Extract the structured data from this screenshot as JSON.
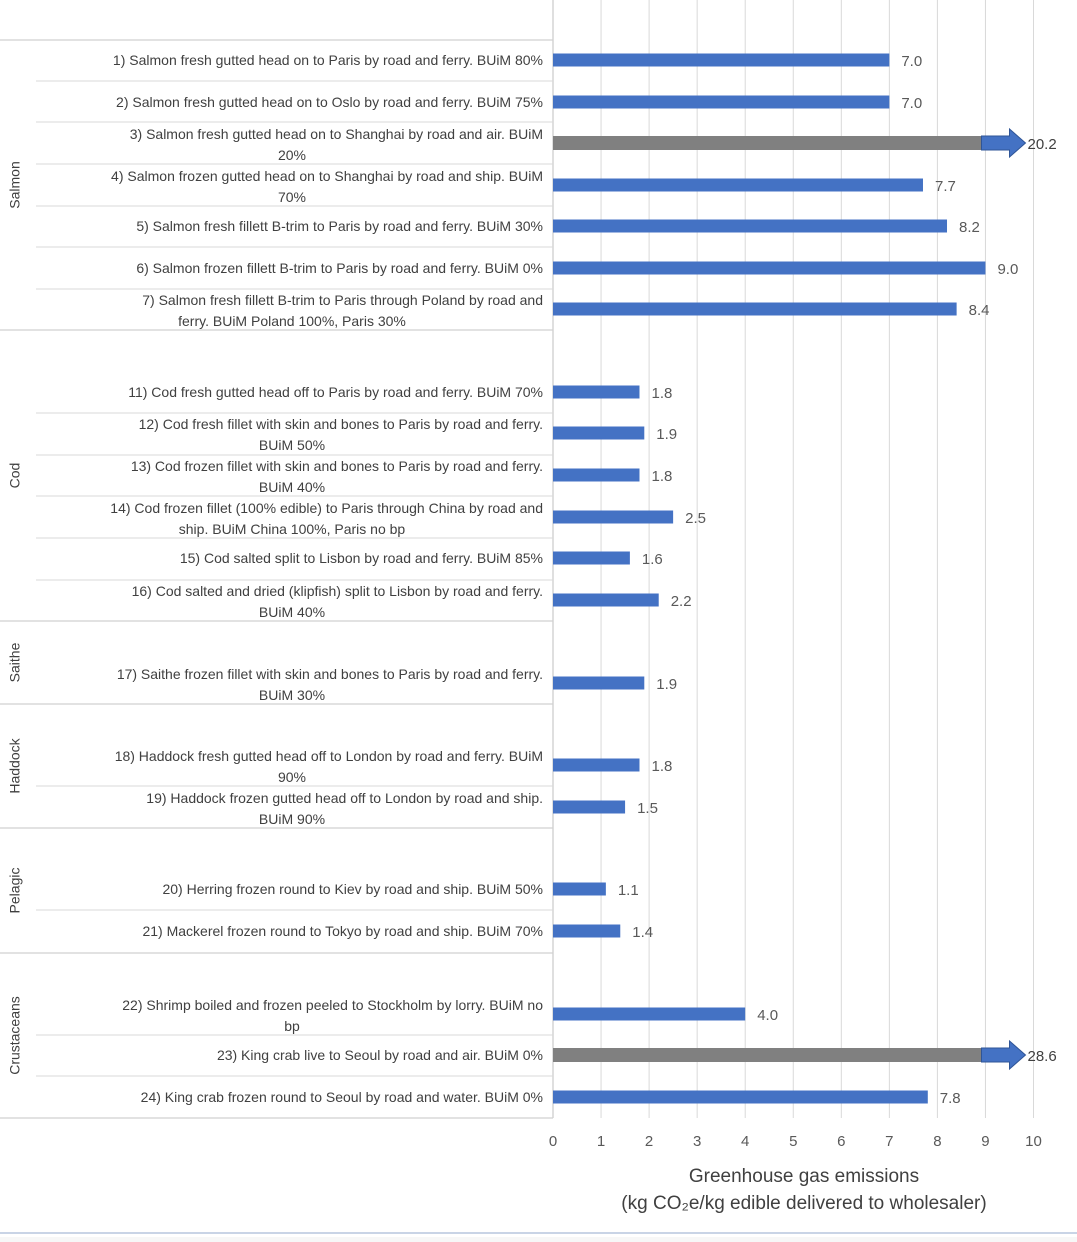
{
  "chart_data": {
    "type": "bar",
    "orientation": "horizontal",
    "xlim": [
      0,
      10
    ],
    "xticks": [
      "0",
      "1",
      "2",
      "3",
      "4",
      "5",
      "6",
      "7",
      "8",
      "9",
      "10"
    ],
    "xlabel": "Greenhouse gas emissions",
    "xlabel_line2": "(kg CO₂e/kg edible delivered to wholesaler)",
    "grid": "vertical",
    "colors": {
      "bar": "#4472c4",
      "offscale_bar": "#808080",
      "arrow": "#4472c4"
    },
    "groups": [
      {
        "name": "Salmon",
        "items": [
          {
            "label": [
              "1) Salmon fresh gutted head on to Paris by road and ferry. BUiM 80%"
            ],
            "value": 7.0,
            "value_label": "7.0"
          },
          {
            "label": [
              "2) Salmon fresh gutted head on to Oslo by road and ferry. BUiM 75%"
            ],
            "value": 7.0,
            "value_label": "7.0"
          },
          {
            "label": [
              "3) Salmon fresh gutted head on to Shanghai by road and air. BUiM",
              "20%"
            ],
            "value": 20.2,
            "value_label": "20.2",
            "offscale": true
          },
          {
            "label": [
              "4) Salmon frozen gutted head on to Shanghai by road and ship. BUiM",
              "70%"
            ],
            "value": 7.7,
            "value_label": "7.7"
          },
          {
            "label": [
              "5) Salmon fresh fillett B-trim to Paris by road and ferry. BUiM 30%"
            ],
            "value": 8.2,
            "value_label": "8.2"
          },
          {
            "label": [
              "6) Salmon frozen fillett B-trim to Paris by road and ferry. BUiM 0%"
            ],
            "value": 9.0,
            "value_label": "9.0"
          },
          {
            "label": [
              "7) Salmon fresh fillett B-trim to Paris through Poland  by road and",
              "ferry. BUiM Poland 100%, Paris 30%"
            ],
            "value": 8.4,
            "value_label": "8.4"
          }
        ]
      },
      {
        "name": "Cod",
        "items": [
          {
            "label": [
              "11) Cod fresh gutted head off to Paris by road and ferry. BUiM 70%"
            ],
            "value": 1.8,
            "value_label": "1.8"
          },
          {
            "label": [
              "12) Cod fresh fillet with skin and bones to Paris by road and ferry.",
              "BUiM 50%"
            ],
            "value": 1.9,
            "value_label": "1.9"
          },
          {
            "label": [
              "13) Cod frozen fillet with skin and bones to Paris by road and ferry.",
              "BUiM 40%"
            ],
            "value": 1.8,
            "value_label": "1.8"
          },
          {
            "label": [
              "14) Cod frozen fillet (100% edible) to Paris through China by road and",
              "ship. BUiM China 100%, Paris no bp"
            ],
            "value": 2.5,
            "value_label": "2.5"
          },
          {
            "label": [
              "15) Cod salted split to Lisbon by road and ferry. BUiM 85%"
            ],
            "value": 1.6,
            "value_label": "1.6"
          },
          {
            "label": [
              "16) Cod salted and dried (klipfish) split to Lisbon by road and ferry.",
              "BUiM 40%"
            ],
            "value": 2.2,
            "value_label": "2.2"
          }
        ]
      },
      {
        "name": "Saithe",
        "items": [
          {
            "label": [
              "17) Saithe frozen fillet with skin and bones to Paris by road and ferry.",
              "BUiM 30%"
            ],
            "value": 1.9,
            "value_label": "1.9"
          }
        ]
      },
      {
        "name": "Haddock",
        "items": [
          {
            "label": [
              "18) Haddock fresh gutted head off to London by road and ferry. BUiM",
              "90%"
            ],
            "value": 1.8,
            "value_label": "1.8"
          },
          {
            "label": [
              "19) Haddock frozen gutted head off to London by road and ship.",
              "BUiM 90%"
            ],
            "value": 1.5,
            "value_label": "1.5"
          }
        ]
      },
      {
        "name": "Pelagic",
        "items": [
          {
            "label": [
              "20) Herring frozen round to Kiev by road and ship. BUiM 50%"
            ],
            "value": 1.1,
            "value_label": "1.1"
          },
          {
            "label": [
              "21) Mackerel frozen round to Tokyo by road and ship. BUiM 70%"
            ],
            "value": 1.4,
            "value_label": "1.4"
          }
        ]
      },
      {
        "name": "Crustaceans",
        "items": [
          {
            "label": [
              "22) Shrimp boiled and frozen peeled  to Stockholm by lorry. BUiM no",
              "bp"
            ],
            "value": 4.0,
            "value_label": "4.0"
          },
          {
            "label": [
              "23) King crab live  to Seoul by road and air. BUiM 0%"
            ],
            "value": 28.6,
            "value_label": "28.6",
            "offscale": true
          },
          {
            "label": [
              "24) King crab frozen round to Seoul by road and water. BUiM 0%"
            ],
            "value": 7.8,
            "value_label": "7.8"
          }
        ]
      }
    ]
  }
}
